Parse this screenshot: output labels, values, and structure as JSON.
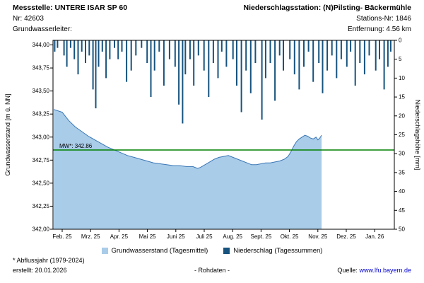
{
  "header": {
    "station_label": "Messstelle: UNTERE ISAR SP 60",
    "nr": "Nr: 42603",
    "aquifer": "Grundwasserleiter:",
    "precip_station": "Niederschlagsstation: (N)Pilsting- Bäckermühle",
    "station_nr": "Stations-Nr: 1846",
    "distance": "Entfernung: 4.56 km"
  },
  "chart_data": {
    "type": "area+bar",
    "left_axis": {
      "label": "Grundwasserstand [m ü. NN]",
      "ticks": [
        "344,00",
        "343,75",
        "343,50",
        "343,25",
        "343,00",
        "342,75",
        "342,50",
        "342,25",
        "342,00"
      ],
      "tick_values": [
        344.0,
        343.75,
        343.5,
        343.25,
        343.0,
        342.75,
        342.5,
        342.25,
        342.0
      ],
      "min": 342.0,
      "max": 344.05
    },
    "right_axis": {
      "label": "Niederschlagshöhe [mm]",
      "ticks": [
        "0",
        "5",
        "10",
        "15",
        "20",
        "25",
        "30",
        "35",
        "40",
        "45",
        "50"
      ],
      "min": 0,
      "max": 50,
      "inverted": true
    },
    "x_axis": {
      "ticks": [
        "Feb. 25",
        "Mrz. 25",
        "Apr. 25",
        "Mai 25",
        "Juni 25",
        "Juli 25",
        "Aug. 25",
        "Sept. 25",
        "Okt. 25",
        "Nov. 25",
        "Dez. 25",
        "Jan. 26"
      ]
    },
    "mean_line": {
      "value": 342.86,
      "label": "MW*: 342.86",
      "color": "#008000"
    },
    "groundwater": {
      "name": "Grundwasserstand (Tagesmittel)",
      "fill_color": "#a9cce9",
      "line_color": "#3a77b5",
      "unit": "m ü. NN",
      "points_day_value": [
        [
          -9,
          343.3
        ],
        [
          0,
          343.27
        ],
        [
          7,
          343.18
        ],
        [
          14,
          343.11
        ],
        [
          21,
          343.06
        ],
        [
          28,
          343.01
        ],
        [
          35,
          342.97
        ],
        [
          42,
          342.93
        ],
        [
          49,
          342.89
        ],
        [
          56,
          342.86
        ],
        [
          63,
          342.83
        ],
        [
          70,
          342.8
        ],
        [
          77,
          342.78
        ],
        [
          84,
          342.76
        ],
        [
          91,
          342.74
        ],
        [
          98,
          342.72
        ],
        [
          105,
          342.71
        ],
        [
          112,
          342.7
        ],
        [
          119,
          342.69
        ],
        [
          126,
          342.69
        ],
        [
          133,
          342.68
        ],
        [
          140,
          342.68
        ],
        [
          145,
          342.66
        ],
        [
          148,
          342.67
        ],
        [
          153,
          342.7
        ],
        [
          158,
          342.73
        ],
        [
          163,
          342.76
        ],
        [
          168,
          342.78
        ],
        [
          173,
          342.79
        ],
        [
          178,
          342.8
        ],
        [
          183,
          342.78
        ],
        [
          188,
          342.76
        ],
        [
          193,
          342.74
        ],
        [
          198,
          342.72
        ],
        [
          203,
          342.7
        ],
        [
          208,
          342.7
        ],
        [
          213,
          342.71
        ],
        [
          218,
          342.72
        ],
        [
          223,
          342.72
        ],
        [
          228,
          342.73
        ],
        [
          233,
          342.74
        ],
        [
          238,
          342.76
        ],
        [
          242,
          342.79
        ],
        [
          245,
          342.84
        ],
        [
          248,
          342.9
        ],
        [
          251,
          342.95
        ],
        [
          254,
          342.98
        ],
        [
          257,
          343.0
        ],
        [
          260,
          343.02
        ],
        [
          263,
          343.01
        ],
        [
          266,
          342.99
        ],
        [
          269,
          342.98
        ],
        [
          272,
          343.0
        ],
        [
          274,
          342.97
        ],
        [
          276,
          342.99
        ],
        [
          278,
          343.02
        ]
      ]
    },
    "precipitation": {
      "name": "Niederschlag (Tagessummen)",
      "color": "#16537e",
      "unit": "mm",
      "events_day_mm": [
        [
          -8,
          3
        ],
        [
          -5,
          2
        ],
        [
          2,
          4
        ],
        [
          5,
          7
        ],
        [
          9,
          2
        ],
        [
          13,
          5
        ],
        [
          17,
          9
        ],
        [
          21,
          3
        ],
        [
          25,
          6
        ],
        [
          29,
          4
        ],
        [
          33,
          13
        ],
        [
          36,
          18
        ],
        [
          39,
          7
        ],
        [
          43,
          3
        ],
        [
          47,
          10
        ],
        [
          51,
          5
        ],
        [
          56,
          2
        ],
        [
          60,
          5
        ],
        [
          64,
          3
        ],
        [
          69,
          11
        ],
        [
          74,
          8
        ],
        [
          79,
          4
        ],
        [
          85,
          2
        ],
        [
          91,
          6
        ],
        [
          95,
          15
        ],
        [
          99,
          8
        ],
        [
          104,
          3
        ],
        [
          109,
          12
        ],
        [
          115,
          5
        ],
        [
          121,
          7
        ],
        [
          125,
          17
        ],
        [
          129,
          22
        ],
        [
          132,
          9
        ],
        [
          137,
          5
        ],
        [
          141,
          12
        ],
        [
          146,
          4
        ],
        [
          152,
          8
        ],
        [
          157,
          15
        ],
        [
          162,
          6
        ],
        [
          167,
          10
        ],
        [
          171,
          3
        ],
        [
          176,
          7
        ],
        [
          183,
          5
        ],
        [
          187,
          12
        ],
        [
          192,
          19
        ],
        [
          197,
          8
        ],
        [
          202,
          14
        ],
        [
          207,
          6
        ],
        [
          214,
          21
        ],
        [
          218,
          10
        ],
        [
          223,
          6
        ],
        [
          228,
          16
        ],
        [
          233,
          4
        ],
        [
          237,
          8
        ],
        [
          244,
          5
        ],
        [
          249,
          9
        ],
        [
          254,
          13
        ],
        [
          259,
          7
        ],
        [
          264,
          3
        ],
        [
          269,
          11
        ],
        [
          275,
          6
        ],
        [
          279,
          14
        ],
        [
          284,
          8
        ],
        [
          289,
          4
        ],
        [
          294,
          10
        ],
        [
          299,
          5
        ],
        [
          305,
          7
        ],
        [
          309,
          3
        ],
        [
          314,
          12
        ],
        [
          319,
          6
        ],
        [
          324,
          9
        ],
        [
          329,
          4
        ],
        [
          336,
          8
        ],
        [
          340,
          5
        ],
        [
          345,
          13
        ],
        [
          349,
          7
        ],
        [
          352,
          3
        ]
      ]
    }
  },
  "legend": [
    {
      "label": "Grundwasserstand (Tagesmittel)",
      "color": "#a9cce9"
    },
    {
      "label": "Niederschlag (Tagessummen)",
      "color": "#16537e"
    }
  ],
  "footer": {
    "note": "* Abflussjahr (1979-2024)",
    "created": "erstellt: 20.01.2026",
    "center": "- Rohdaten -",
    "source_label": "Quelle:",
    "source_link": "www.lfu.bayern.de"
  }
}
